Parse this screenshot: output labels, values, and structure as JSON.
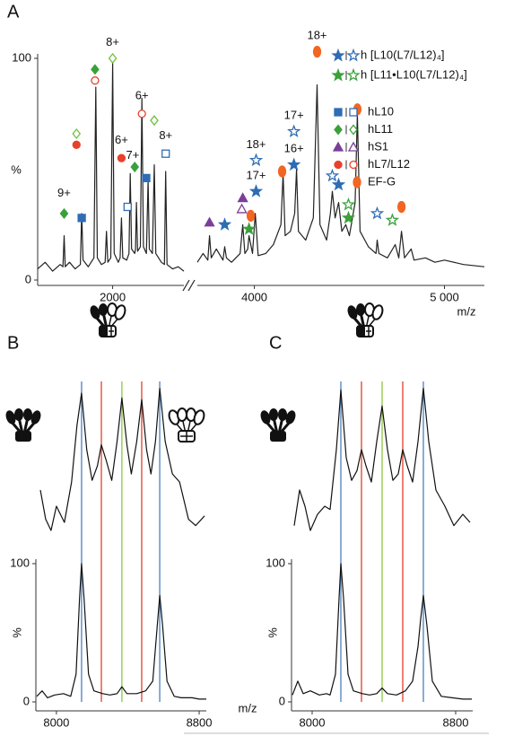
{
  "chart_data": [
    {
      "label": "A",
      "type": "line",
      "color": "#222222",
      "xlim": [
        1600,
        2380
      ],
      "xticks": [
        2000
      ],
      "ylim": [
        0,
        100
      ],
      "yticks": [
        0,
        100
      ],
      "ylabel": "%",
      "x": [
        1600,
        1640,
        1680,
        1720,
        1735,
        1741,
        1747,
        1770,
        1800,
        1828,
        1835,
        1842,
        1870,
        1900,
        1910,
        1918,
        1940,
        1960,
        1967,
        1974,
        1990,
        2000,
        2008,
        2030,
        2040,
        2047,
        2054,
        2075,
        2087,
        2094,
        2101,
        2118,
        2122,
        2127,
        2133,
        2148,
        2156,
        2164,
        2180,
        2189,
        2196,
        2212,
        2222,
        2230,
        2260,
        2276,
        2283,
        2290,
        2320,
        2350,
        2380
      ],
      "values": [
        5,
        8,
        4,
        7,
        6,
        20,
        6,
        8,
        5,
        7,
        30,
        9,
        6,
        10,
        87,
        10,
        7,
        8,
        22,
        8,
        10,
        98,
        12,
        8,
        10,
        28,
        10,
        9,
        12,
        48,
        14,
        12,
        14,
        35,
        13,
        15,
        82,
        15,
        12,
        45,
        14,
        12,
        52,
        12,
        8,
        7,
        49,
        7,
        5,
        6,
        4
      ],
      "markers": [
        {
          "x": 1741,
          "y": 30,
          "shape": "diamond",
          "color": "#3aa13a",
          "filled": true
        },
        {
          "x": 1835,
          "y": 28,
          "shape": "square",
          "color": "#2e6db4",
          "filled": true
        },
        {
          "x": 1807,
          "y": 66,
          "shape": "diamond",
          "color": "#6fbf3f",
          "filled": false
        },
        {
          "x": 1807,
          "y": 61,
          "shape": "circle",
          "color": "#e8412b",
          "filled": true
        },
        {
          "x": 1906,
          "y": 95,
          "shape": "diamond",
          "color": "#3aa13a",
          "filled": true
        },
        {
          "x": 1906,
          "y": 90,
          "shape": "circle",
          "color": "#e8412b",
          "filled": false
        },
        {
          "x": 2000,
          "y": 100,
          "shape": "diamond",
          "color": "#6fbf3f",
          "filled": false
        },
        {
          "x": 2047,
          "y": 55,
          "shape": "circle",
          "color": "#e8412b",
          "filled": true
        },
        {
          "x": 2080,
          "y": 33,
          "shape": "square",
          "color": "#2e6db4",
          "filled": false
        },
        {
          "x": 2118,
          "y": 51,
          "shape": "diamond",
          "color": "#3aa13a",
          "filled": true
        },
        {
          "x": 2179,
          "y": 46,
          "shape": "square",
          "color": "#2e6db4",
          "filled": true
        },
        {
          "x": 2156,
          "y": 75,
          "shape": "circle",
          "color": "#e8412b",
          "filled": false
        },
        {
          "x": 2222,
          "y": 72,
          "shape": "diamond",
          "color": "#6fbf3f",
          "filled": false
        },
        {
          "x": 2283,
          "y": 57,
          "shape": "square",
          "color": "#2e6db4",
          "filled": false
        }
      ],
      "annotations": [
        {
          "text": "9+",
          "x": 1741,
          "y": 39
        },
        {
          "text": "8+",
          "x": 2000,
          "y": 107
        },
        {
          "text": "6+",
          "x": 2047,
          "y": 63
        },
        {
          "text": "7+",
          "x": 2107,
          "y": 56
        },
        {
          "text": "6+",
          "x": 2156,
          "y": 83
        },
        {
          "text": "8+",
          "x": 2283,
          "y": 65
        }
      ]
    },
    {
      "type": "line",
      "color": "#222222",
      "xlim": [
        3700,
        5210
      ],
      "xticks": [
        4000,
        {
          "value": 5000,
          "label": "5 000"
        }
      ],
      "ylim": [
        0,
        100
      ],
      "xlabel": "m/z",
      "x": [
        3700,
        3730,
        3755,
        3764,
        3773,
        3800,
        3835,
        3844,
        3853,
        3880,
        3925,
        3939,
        3950,
        3965,
        3972,
        3990,
        4005,
        4020,
        4060,
        4100,
        4140,
        4151,
        4162,
        4190,
        4212,
        4222,
        4232,
        4270,
        4310,
        4330,
        4345,
        4380,
        4400,
        4410,
        4425,
        4443,
        4460,
        4481,
        4500,
        4530,
        4542,
        4556,
        4600,
        4640,
        4646,
        4655,
        4700,
        4741,
        4760,
        4774,
        4790,
        4825,
        4840,
        4900,
        4950,
        5000,
        5100,
        5210
      ],
      "values": [
        8,
        12,
        9,
        20,
        10,
        14,
        9,
        15,
        10,
        8,
        12,
        25,
        12,
        14,
        20,
        12,
        30,
        11,
        12,
        16,
        25,
        48,
        20,
        22,
        30,
        50,
        22,
        18,
        28,
        88,
        25,
        18,
        30,
        40,
        28,
        35,
        22,
        25,
        20,
        35,
        75,
        22,
        15,
        12,
        18,
        12,
        10,
        16,
        10,
        22,
        10,
        14,
        9,
        10,
        8,
        9,
        7,
        6
      ],
      "markers": [
        {
          "x": 3764,
          "y": 26,
          "shape": "triangle",
          "color": "#7b3f98",
          "filled": true
        },
        {
          "x": 3844,
          "y": 25,
          "shape": "star",
          "color": "#2e6db4",
          "filled": true
        },
        {
          "x": 3939,
          "y": 37,
          "shape": "triangle",
          "color": "#7b3f98",
          "filled": true
        },
        {
          "x": 3934,
          "y": 32,
          "shape": "triangle",
          "color": "#7b3f98",
          "filled": false
        },
        {
          "x": 3981,
          "y": 29,
          "shape": "ellipse",
          "color": "#f26522",
          "filled": true
        },
        {
          "x": 3972,
          "y": 23,
          "shape": "star",
          "color": "#3aa13a",
          "filled": true
        },
        {
          "x": 4009,
          "y": 40,
          "shape": "star",
          "color": "#2e6db4",
          "filled": true
        },
        {
          "x": 4009,
          "y": 54,
          "shape": "star",
          "color": "#2e6db4",
          "filled": false
        },
        {
          "x": 4146,
          "y": 49,
          "shape": "ellipse",
          "color": "#f26522",
          "filled": true
        },
        {
          "x": 4208,
          "y": 52,
          "shape": "star",
          "color": "#2e6db4",
          "filled": true
        },
        {
          "x": 4208,
          "y": 67,
          "shape": "star",
          "color": "#2e6db4",
          "filled": false
        },
        {
          "x": 4330,
          "y": 103,
          "shape": "ellipse",
          "color": "#f26522",
          "filled": true
        },
        {
          "x": 4542,
          "y": 77,
          "shape": "ellipse",
          "color": "#f26522",
          "filled": true
        },
        {
          "x": 4410,
          "y": 47,
          "shape": "star",
          "color": "#2e6db4",
          "filled": false
        },
        {
          "x": 4443,
          "y": 43,
          "shape": "star",
          "color": "#2e6db4",
          "filled": true
        },
        {
          "x": 4495,
          "y": 34,
          "shape": "star",
          "color": "#3aa13a",
          "filled": false
        },
        {
          "x": 4495,
          "y": 28,
          "shape": "star",
          "color": "#3aa13a",
          "filled": true
        },
        {
          "x": 4646,
          "y": 30,
          "shape": "star",
          "color": "#2e6db4",
          "filled": false
        },
        {
          "x": 4726,
          "y": 27,
          "shape": "star",
          "color": "#3aa13a",
          "filled": false
        },
        {
          "x": 4774,
          "y": 33,
          "shape": "ellipse",
          "color": "#f26522",
          "filled": true
        }
      ],
      "annotations": [
        {
          "text": "17+",
          "x": 4009,
          "y": 47
        },
        {
          "text": "18+",
          "x": 4009,
          "y": 61
        },
        {
          "text": "16+",
          "x": 4208,
          "y": 59
        },
        {
          "text": "17+",
          "x": 4208,
          "y": 74
        },
        {
          "text": "18+",
          "x": 4330,
          "y": 110
        }
      ],
      "legend": [
        {
          "label": "h [L10(L7/L12)₄]",
          "color": "#2e6db4",
          "shape": "star",
          "pair": true
        },
        {
          "label": "h [L11•L10(L7/L12)₄]",
          "color": "#3aa13a",
          "shape": "star",
          "pair": true
        },
        {
          "label": "hL10",
          "color": "#2e6db4",
          "shape": "square",
          "pair": true
        },
        {
          "label": "hL11",
          "color": "#3aa13a",
          "shape": "diamond",
          "pair": true
        },
        {
          "label": "hS1",
          "color": "#7b3f98",
          "shape": "triangle",
          "pair": true
        },
        {
          "label": "hL7/L12",
          "color": "#e8412b",
          "shape": "circle",
          "pair": true
        },
        {
          "label": "EF-G",
          "color": "#f26522",
          "shape": "ellipse",
          "pair": false
        }
      ]
    },
    {
      "label": "B",
      "type": "line",
      "color": "#111111",
      "xlim": [
        7885,
        8840
      ],
      "ylim": [
        0,
        100
      ],
      "x": [
        7910,
        7940,
        7970,
        8000,
        8045,
        8085,
        8115,
        8141,
        8170,
        8200,
        8230,
        8252,
        8280,
        8310,
        8340,
        8367,
        8395,
        8420,
        8450,
        8478,
        8505,
        8530,
        8555,
        8579,
        8610,
        8650,
        8690,
        8740,
        8780,
        8830
      ],
      "values": [
        30,
        12,
        5,
        20,
        10,
        35,
        70,
        90,
        55,
        36,
        45,
        58,
        48,
        36,
        60,
        87,
        58,
        40,
        60,
        86,
        55,
        40,
        60,
        93,
        60,
        40,
        35,
        12,
        8,
        14
      ],
      "vlines": [
        {
          "x": 8141,
          "color": "#4a7fc1"
        },
        {
          "x": 8252,
          "color": "#e0402a"
        },
        {
          "x": 8367,
          "color": "#8cc63f"
        },
        {
          "x": 8478,
          "color": "#e0402a"
        },
        {
          "x": 8579,
          "color": "#4a7fc1"
        }
      ]
    },
    {
      "type": "line",
      "color": "#111111",
      "xlim": [
        7885,
        8840
      ],
      "xticks": [
        8000,
        8800
      ],
      "ylim": [
        0,
        100
      ],
      "yticks": [
        0,
        100
      ],
      "ylabel": "%",
      "xlabel": "m/z",
      "x": [
        7890,
        7920,
        7950,
        7990,
        8040,
        8080,
        8110,
        8130,
        8141,
        8155,
        8180,
        8210,
        8260,
        8300,
        8340,
        8367,
        8395,
        8450,
        8500,
        8540,
        8565,
        8579,
        8595,
        8620,
        8660,
        8700,
        8760,
        8800,
        8840
      ],
      "values": [
        4,
        8,
        3,
        5,
        6,
        4,
        20,
        75,
        100,
        75,
        20,
        8,
        6,
        5,
        6,
        11,
        6,
        6,
        8,
        15,
        55,
        77,
        55,
        15,
        4,
        3,
        3,
        2,
        2
      ]
    },
    {
      "label": "C",
      "type": "line",
      "color": "#111111",
      "xlim": [
        7885,
        8895
      ],
      "ylim": [
        0,
        100
      ],
      "x": [
        7900,
        7930,
        7960,
        7990,
        8030,
        8070,
        8100,
        8135,
        8160,
        8190,
        8220,
        8250,
        8275,
        8300,
        8330,
        8360,
        8390,
        8420,
        8450,
        8480,
        8505,
        8530,
        8560,
        8590,
        8620,
        8650,
        8690,
        8740,
        8790,
        8840,
        8880
      ],
      "values": [
        8,
        30,
        20,
        5,
        15,
        20,
        18,
        55,
        92,
        50,
        36,
        42,
        55,
        45,
        35,
        60,
        82,
        55,
        36,
        40,
        55,
        45,
        35,
        60,
        93,
        60,
        30,
        20,
        8,
        15,
        10
      ],
      "vlines": [
        {
          "x": 8160,
          "color": "#4a7fc1"
        },
        {
          "x": 8275,
          "color": "#e0402a"
        },
        {
          "x": 8390,
          "color": "#8cc63f"
        },
        {
          "x": 8505,
          "color": "#e0402a"
        },
        {
          "x": 8620,
          "color": "#4a7fc1"
        }
      ]
    },
    {
      "type": "line",
      "color": "#111111",
      "xlim": [
        7885,
        8895
      ],
      "xticks": [
        8000,
        8800
      ],
      "ylim": [
        0,
        100
      ],
      "yticks": [
        0,
        100
      ],
      "ylabel": "%",
      "x": [
        7890,
        7920,
        7950,
        7990,
        8040,
        8080,
        8100,
        8130,
        8150,
        8160,
        8175,
        8200,
        8230,
        8280,
        8320,
        8360,
        8390,
        8420,
        8470,
        8520,
        8560,
        8590,
        8605,
        8620,
        8640,
        8670,
        8720,
        8780,
        8840,
        8890
      ],
      "values": [
        5,
        15,
        6,
        8,
        5,
        6,
        5,
        20,
        75,
        100,
        75,
        20,
        8,
        6,
        5,
        6,
        10,
        6,
        5,
        8,
        15,
        40,
        60,
        77,
        55,
        15,
        4,
        3,
        2,
        2
      ]
    }
  ]
}
